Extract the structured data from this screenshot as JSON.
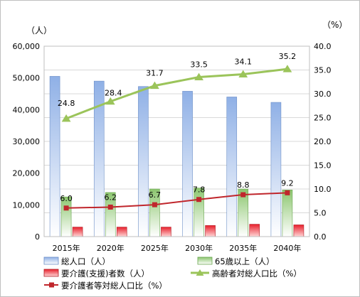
{
  "chart_data": {
    "type": "bar",
    "categories": [
      "2015年",
      "2020年",
      "2025年",
      "2030年",
      "2035年",
      "2040年"
    ],
    "left_axis": {
      "unit_label": "（人）",
      "ylim": [
        0,
        60000
      ],
      "ticks": [
        "0",
        "10,000",
        "20,000",
        "30,000",
        "40,000",
        "50,000",
        "60,000"
      ]
    },
    "right_axis": {
      "unit_label": "（%）",
      "ylim": [
        0,
        40
      ],
      "ticks": [
        "0.0",
        "5.0",
        "10.0",
        "15.0",
        "20.0",
        "25.0",
        "30.0",
        "35.0",
        "40.0"
      ]
    },
    "series": [
      {
        "name": "総人口（人）",
        "kind": "bar",
        "axis": "left",
        "color": "#a9c4ec",
        "values": [
          50500,
          49000,
          47300,
          45800,
          44000,
          42300
        ]
      },
      {
        "name": "65歳以上（人）",
        "kind": "bar",
        "axis": "left",
        "color": "#9bcf84",
        "values": [
          12500,
          13900,
          15000,
          15300,
          15000,
          14700
        ]
      },
      {
        "name": "要介護(支援)者数（人）",
        "kind": "bar",
        "axis": "left",
        "color": "#e8303a",
        "values": [
          3000,
          3000,
          3000,
          3500,
          3900,
          3700
        ]
      },
      {
        "name": "高齢者対総人口比（%）",
        "kind": "line",
        "axis": "right",
        "color": "#9bc45a",
        "marker": "triangle",
        "values": [
          24.8,
          28.4,
          31.7,
          33.5,
          34.1,
          35.2
        ],
        "labels": [
          "24.8",
          "28.4",
          "31.7",
          "33.5",
          "34.1",
          "35.2"
        ]
      },
      {
        "name": "要介護者等対総人口比（%）",
        "kind": "line",
        "axis": "right",
        "color": "#c0262c",
        "marker": "square",
        "values": [
          6.0,
          6.2,
          6.7,
          7.8,
          8.8,
          9.2
        ],
        "labels": [
          "6.0",
          "6.2",
          "6.7",
          "7.8",
          "8.8",
          "9.2"
        ]
      }
    ],
    "grid": true,
    "legend_position": "bottom"
  }
}
